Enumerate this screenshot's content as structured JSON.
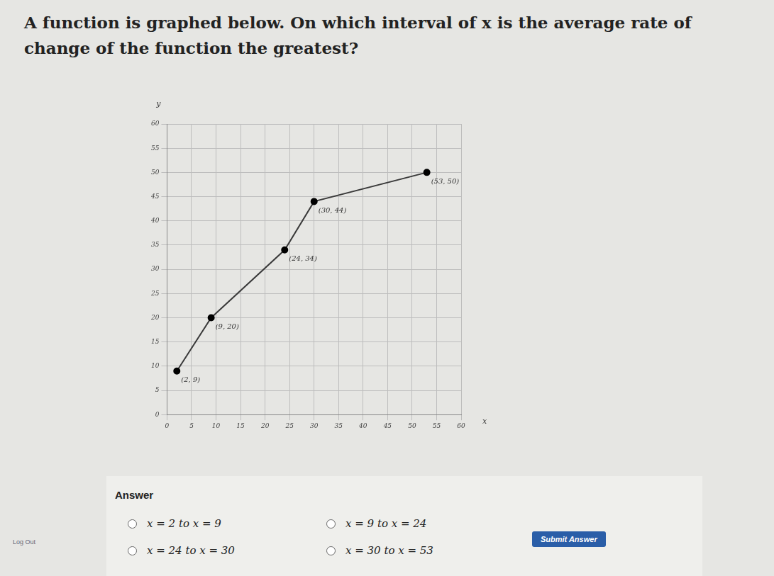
{
  "question": "A function is graphed below. On which interval of x is the average rate of change of the function the greatest?",
  "answer_label": "Answer",
  "choices": [
    "x = 2 to x = 9",
    "x = 9 to x = 24",
    "x = 24 to x = 30",
    "x = 30 to x = 53"
  ],
  "button": "Submit Answer",
  "side_link": "Log Out",
  "chart_data": {
    "type": "line",
    "x_label": "x",
    "y_label": "y",
    "x": [
      2,
      9,
      24,
      30,
      53
    ],
    "values": [
      9,
      20,
      34,
      44,
      50
    ],
    "point_labels": [
      "(2, 9)",
      "(9, 20)",
      "(24, 34)",
      "(30, 44)",
      "(53, 50)"
    ],
    "color": "#3a3a3a",
    "marker": "circle",
    "xlim": [
      0,
      60
    ],
    "xticks": [
      0,
      5,
      10,
      15,
      20,
      25,
      30,
      35,
      40,
      45,
      50,
      55,
      60
    ],
    "ylim": [
      0,
      60
    ],
    "yticks": [
      0,
      5,
      10,
      15,
      20,
      25,
      30,
      35,
      40,
      45,
      50,
      55,
      60
    ],
    "grid": true
  }
}
